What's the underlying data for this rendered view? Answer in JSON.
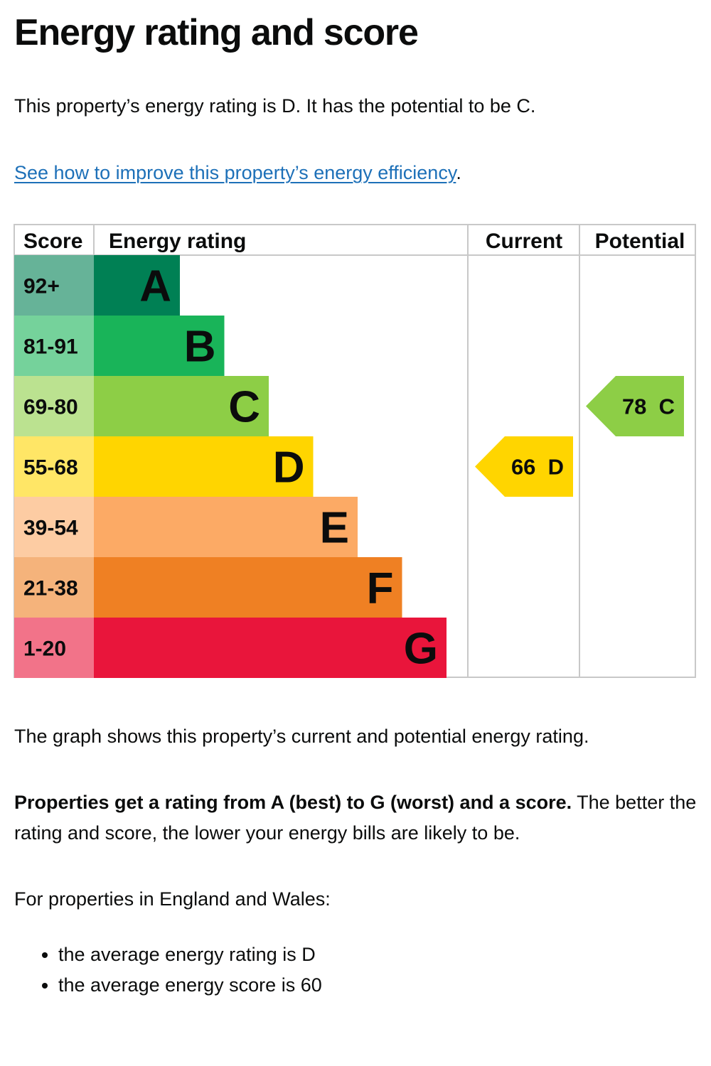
{
  "heading": "Energy rating and score",
  "intro": "This property’s energy rating is D. It has the potential to be C.",
  "improve_link": "See how to improve this property’s energy efficiency",
  "improve_suffix": ".",
  "chart_data": {
    "type": "bar",
    "columns": [
      "Score",
      "Energy rating",
      "Current",
      "Potential"
    ],
    "bands": [
      {
        "letter": "A",
        "range": "92+",
        "color": "#008054",
        "score_color": "#66b398"
      },
      {
        "letter": "B",
        "range": "81-91",
        "color": "#19b459",
        "score_color": "#75d29b"
      },
      {
        "letter": "C",
        "range": "69-80",
        "color": "#8dce46",
        "score_color": "#bbe290"
      },
      {
        "letter": "D",
        "range": "55-68",
        "color": "#ffd500",
        "score_color": "#ffe666"
      },
      {
        "letter": "E",
        "range": "39-54",
        "color": "#fcaa65",
        "score_color": "#fdcca3"
      },
      {
        "letter": "F",
        "range": "21-38",
        "color": "#ef8023",
        "score_color": "#f5b37b"
      },
      {
        "letter": "G",
        "range": "1-20",
        "color": "#e9153b",
        "score_color": "#f27389"
      }
    ],
    "current": {
      "score": 66,
      "band": "D",
      "label": "66  D",
      "color": "#ffd500"
    },
    "potential": {
      "score": 78,
      "band": "C",
      "label": "78  C",
      "color": "#8dce46"
    }
  },
  "graph_caption": "The graph shows this property’s current and potential energy rating.",
  "ratings_bold": "Properties get a rating from A (best) to G (worst) and a score.",
  "ratings_rest": " The better the rating and score, the lower your energy bills are likely to be.",
  "region_text": "For properties in England and Wales:",
  "averages": [
    "the average energy rating is D",
    "the average energy score is 60"
  ]
}
